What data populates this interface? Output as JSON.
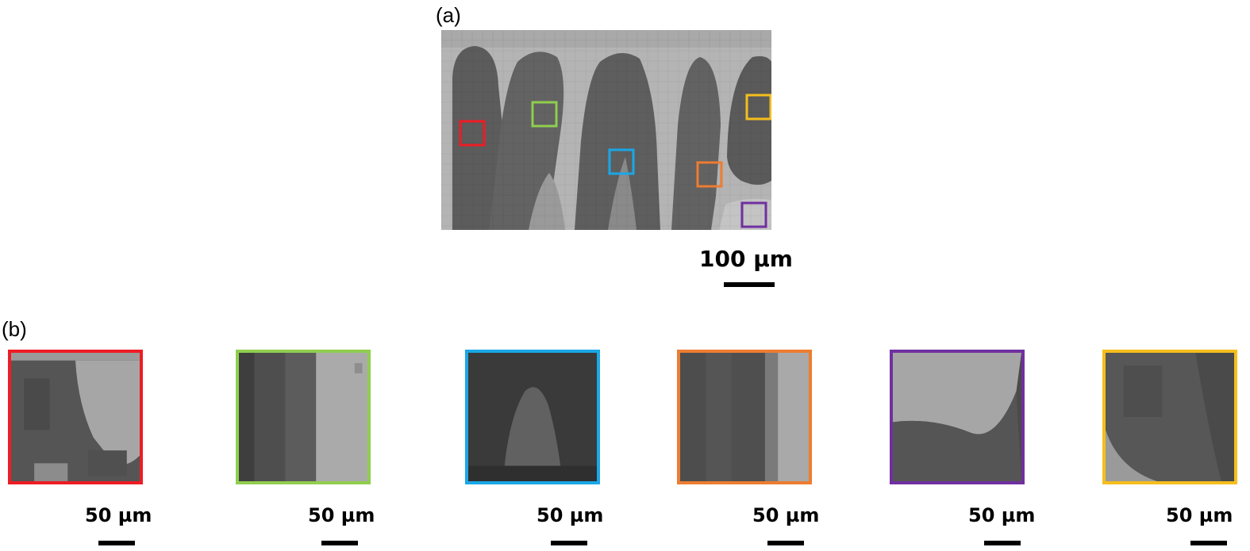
{
  "panel_a": {
    "label": "(a)",
    "scale_label": "100 µm"
  },
  "panel_b": {
    "label": "(b)",
    "insets": [
      {
        "name": "red",
        "color": "#ee1c24",
        "scale_label": "50 µm"
      },
      {
        "name": "green",
        "color": "#8fce4f",
        "scale_label": "50 µm"
      },
      {
        "name": "blue",
        "color": "#1aa7e6",
        "scale_label": "50 µm"
      },
      {
        "name": "orange",
        "color": "#ed7d31",
        "scale_label": "50 µm"
      },
      {
        "name": "purple",
        "color": "#7030a0",
        "scale_label": "50 µm"
      },
      {
        "name": "yellow",
        "color": "#f5be1c",
        "scale_label": "50 µm"
      }
    ]
  }
}
